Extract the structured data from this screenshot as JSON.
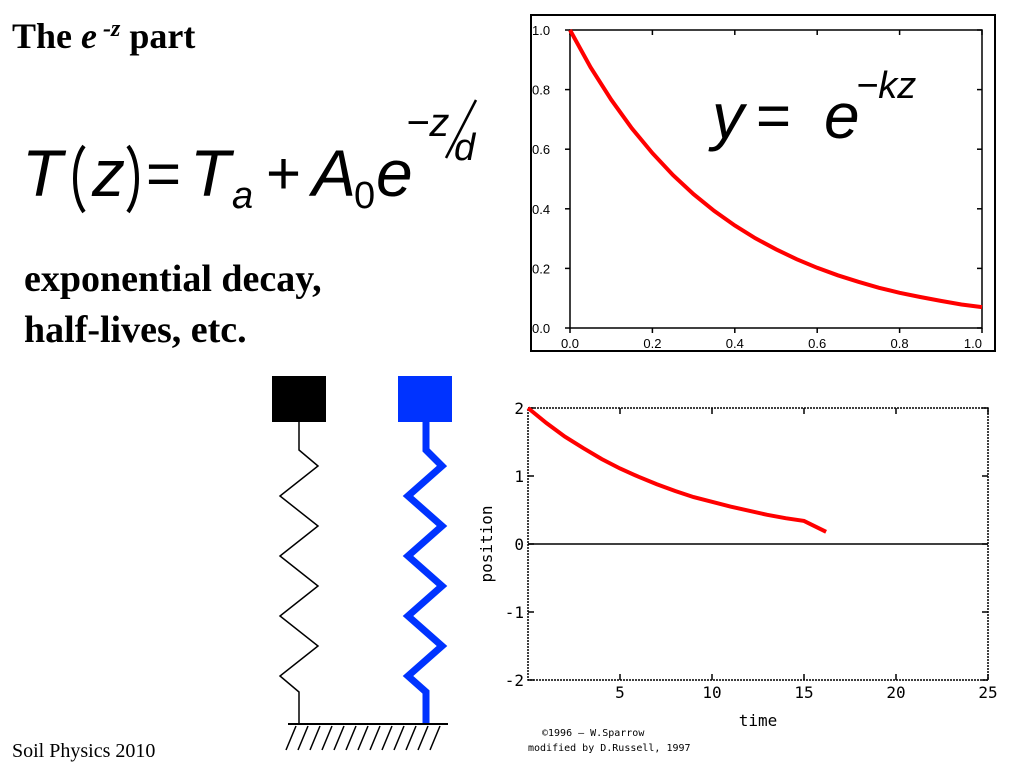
{
  "slide": {
    "title_prefix": "The ",
    "title_e": "e",
    "title_sup": "-z",
    "title_suffix": " part",
    "formula": {
      "T": "T",
      "z": "z",
      "eq": "=",
      "Ta": "T",
      "a": "a",
      "plus": "+",
      "A": "A",
      "zero": "0",
      "e": "e",
      "exp_num": "−z",
      "exp_den": "d"
    },
    "bullet_lines": [
      "exponential decay,",
      "half-lives, etc."
    ],
    "footer": "Soil Physics 2010"
  },
  "chart_data": [
    {
      "type": "line",
      "title": "",
      "annotation": {
        "y": "y",
        "eq": "=",
        "e": "e",
        "exponent": "−kz"
      },
      "xlim": [
        0.0,
        1.0
      ],
      "ylim": [
        0.0,
        1.0
      ],
      "xticks": [
        "0.0",
        "0.2",
        "0.4",
        "0.6",
        "0.8",
        "1.0"
      ],
      "yticks": [
        "0.0",
        "0.2",
        "0.4",
        "0.6",
        "0.8",
        "1.0"
      ],
      "series": [
        {
          "x": [
            0.0,
            0.05,
            0.1,
            0.15,
            0.2,
            0.25,
            0.3,
            0.35,
            0.4,
            0.45,
            0.5,
            0.55,
            0.6,
            0.65,
            0.7,
            0.75,
            0.8,
            0.85,
            0.9,
            0.95,
            1.0
          ],
          "y": [
            1.0,
            0.875,
            0.766,
            0.67,
            0.587,
            0.513,
            0.449,
            0.393,
            0.344,
            0.301,
            0.264,
            0.231,
            0.202,
            0.177,
            0.155,
            0.135,
            0.118,
            0.104,
            0.091,
            0.079,
            0.07
          ],
          "color": "#ff0000"
        }
      ]
    },
    {
      "type": "line",
      "title": "",
      "xlabel": "time",
      "ylabel": "position",
      "xlim": [
        0,
        25
      ],
      "ylim": [
        -2,
        2
      ],
      "xticks": [
        "5",
        "10",
        "15",
        "20",
        "25"
      ],
      "yticks": [
        "2",
        "1",
        "0",
        "-1",
        "-2"
      ],
      "credits": [
        "©1996 – W.Sparrow",
        "modified by D.Russell, 1997"
      ],
      "series": [
        {
          "x": [
            0,
            1,
            2,
            3,
            4,
            5,
            6,
            7,
            8,
            9,
            10,
            11,
            12,
            13,
            14,
            15,
            16.2
          ],
          "y": [
            2.0,
            1.78,
            1.58,
            1.41,
            1.25,
            1.11,
            0.99,
            0.88,
            0.78,
            0.69,
            0.62,
            0.55,
            0.49,
            0.43,
            0.38,
            0.34,
            0.18
          ],
          "color": "#ff0000"
        }
      ]
    }
  ],
  "springs": {
    "left_color": "#000000",
    "right_color": "#0033ff"
  }
}
